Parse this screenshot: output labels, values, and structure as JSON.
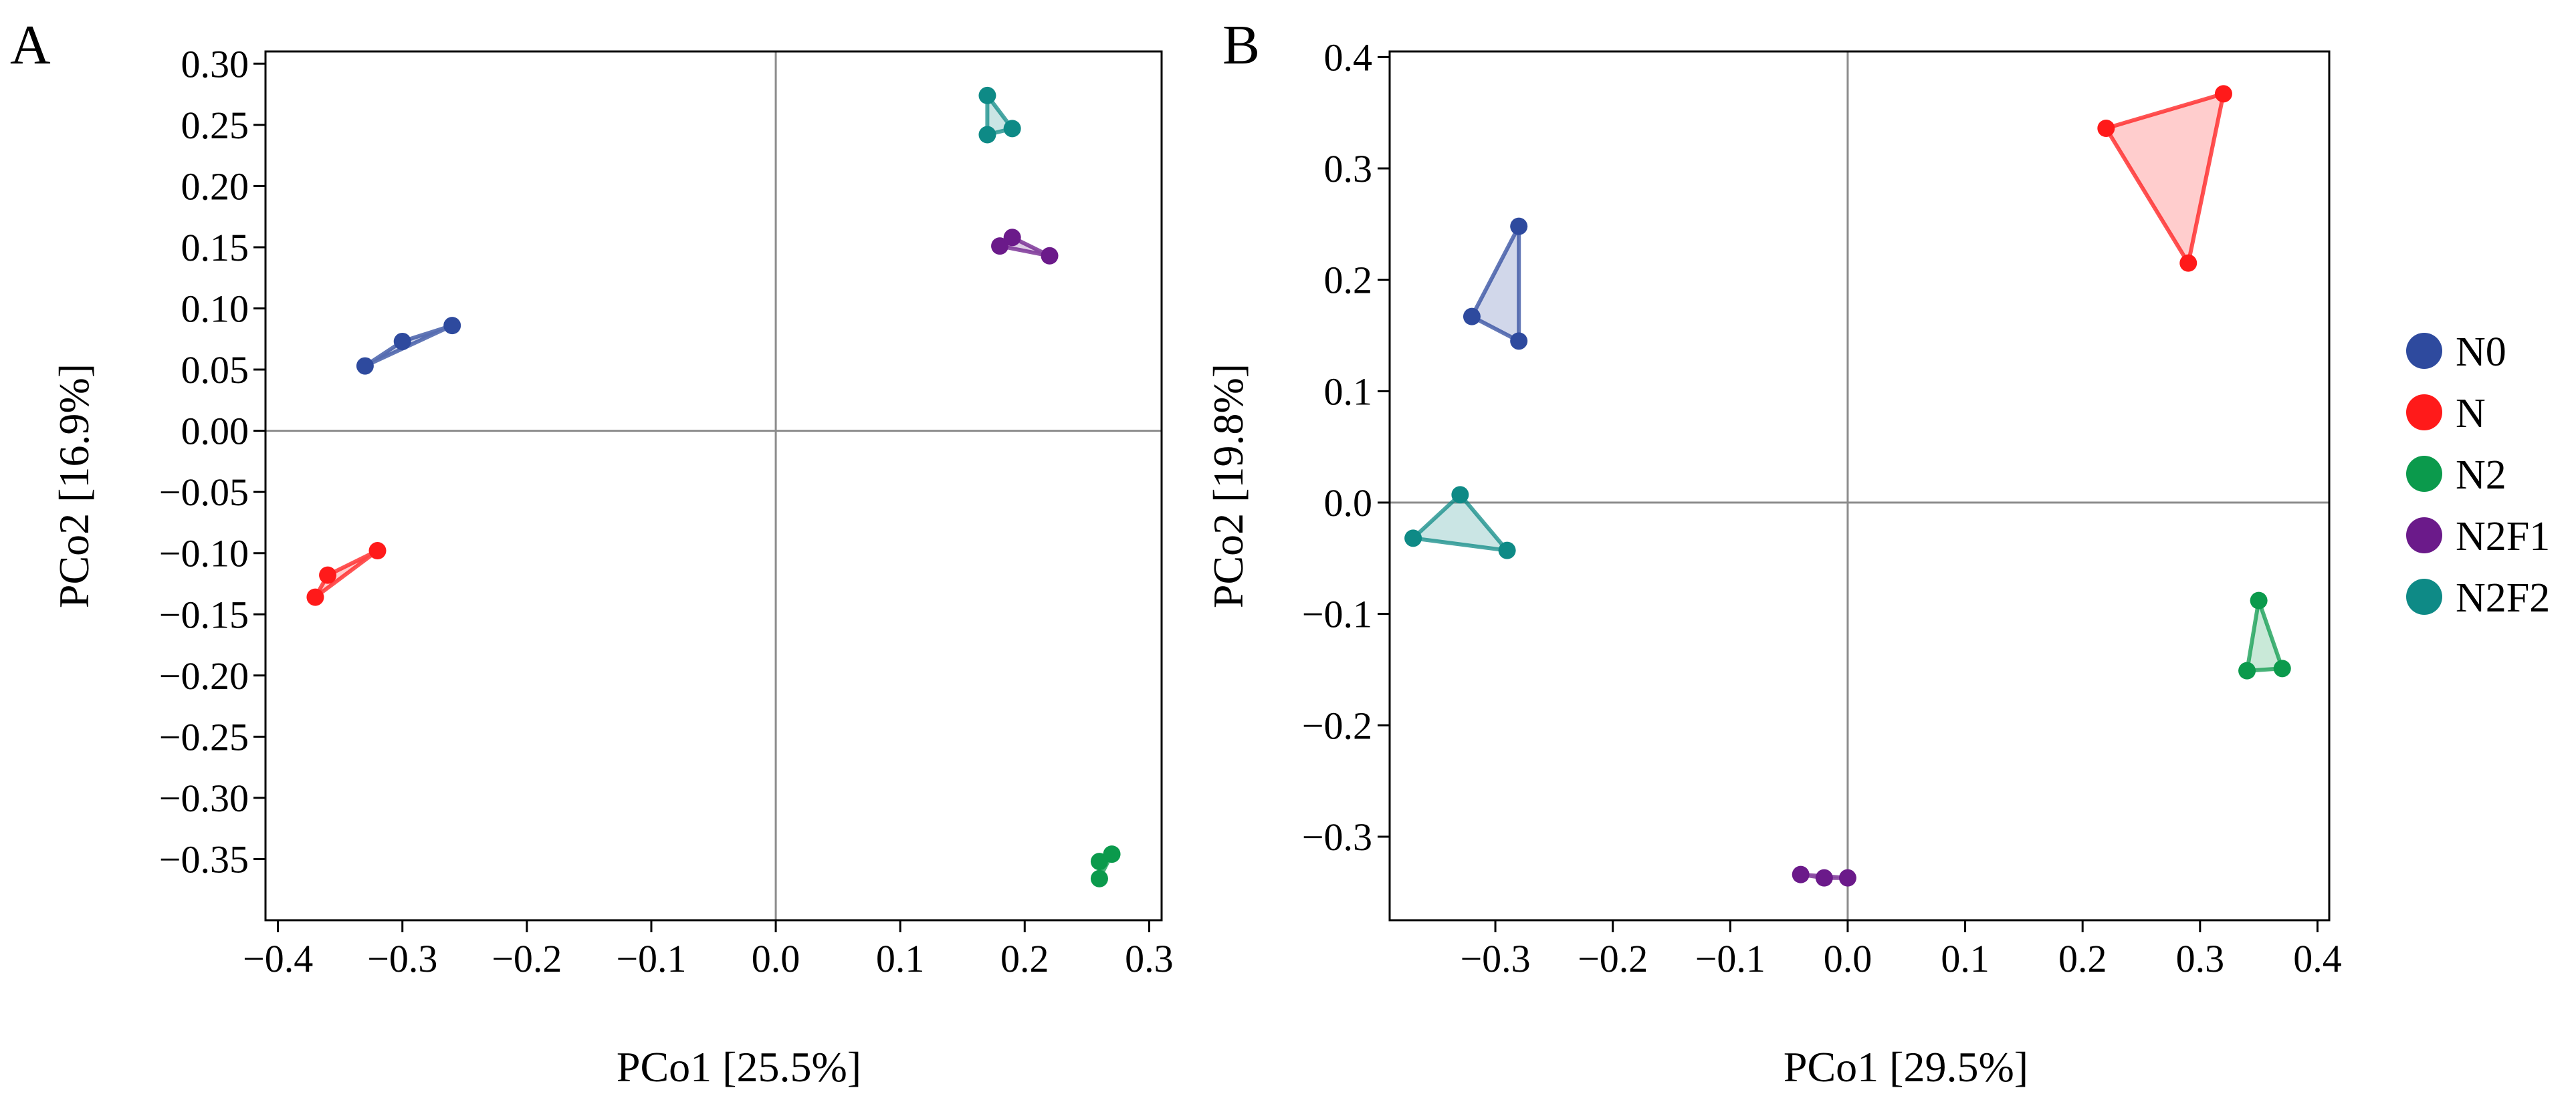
{
  "figure": {
    "legend": [
      {
        "label": "N0",
        "color": "#2e4a9e"
      },
      {
        "label": "N",
        "color": "#ff1a1a"
      },
      {
        "label": "N2",
        "color": "#0b9a4c"
      },
      {
        "label": "N2F1",
        "color": "#6b1a8a"
      },
      {
        "label": "N2F2",
        "color": "#0e8a86"
      }
    ]
  },
  "chart_data": [
    {
      "type": "scatter",
      "panel": "A",
      "xlabel": "PCo1 [25.5%]",
      "ylabel": "PCo2 [16.9%]",
      "xlim": [
        -0.41,
        0.31
      ],
      "ylim": [
        -0.4,
        0.31
      ],
      "xticks": [
        -0.4,
        -0.3,
        -0.2,
        -0.1,
        0.0,
        0.1,
        0.2,
        0.3
      ],
      "xtick_labels": [
        "−0.4",
        "−0.3",
        "−0.2",
        "−0.1",
        "0.0",
        "0.1",
        "0.2",
        "0.3"
      ],
      "yticks": [
        0.3,
        0.25,
        0.2,
        0.15,
        0.1,
        0.05,
        0.0,
        -0.05,
        -0.1,
        -0.15,
        -0.2,
        -0.25,
        -0.3,
        -0.35
      ],
      "ytick_labels": [
        "0.30",
        "0.25",
        "0.20",
        "0.15",
        "0.10",
        "0.05",
        "0.00",
        "−0.05",
        "−0.10",
        "−0.15",
        "−0.20",
        "−0.25",
        "−0.30",
        "−0.35"
      ],
      "grid": false,
      "zero_lines": true,
      "series": [
        {
          "name": "N0",
          "color": "#2e4a9e",
          "points": [
            [
              -0.33,
              0.053
            ],
            [
              -0.3,
              0.073
            ],
            [
              -0.26,
              0.086
            ]
          ]
        },
        {
          "name": "N",
          "color": "#ff1a1a",
          "points": [
            [
              -0.37,
              -0.136
            ],
            [
              -0.36,
              -0.118
            ],
            [
              -0.32,
              -0.098
            ]
          ]
        },
        {
          "name": "N2",
          "color": "#0b9a4c",
          "points": [
            [
              0.26,
              -0.352
            ],
            [
              0.27,
              -0.346
            ],
            [
              0.26,
              -0.366
            ]
          ]
        },
        {
          "name": "N2F1",
          "color": "#6b1a8a",
          "points": [
            [
              0.18,
              0.151
            ],
            [
              0.19,
              0.158
            ],
            [
              0.22,
              0.143
            ]
          ]
        },
        {
          "name": "N2F2",
          "color": "#0e8a86",
          "points": [
            [
              0.17,
              0.274
            ],
            [
              0.19,
              0.247
            ],
            [
              0.17,
              0.242
            ]
          ]
        }
      ]
    },
    {
      "type": "scatter",
      "panel": "B",
      "xlabel": "PCo1 [29.5%]",
      "ylabel": "PCo2 [19.8%]",
      "xlim": [
        -0.39,
        0.41
      ],
      "ylim": [
        -0.375,
        0.405
      ],
      "xticks": [
        -0.3,
        -0.2,
        -0.1,
        0.0,
        0.1,
        0.2,
        0.3,
        0.4
      ],
      "xtick_labels": [
        "−0.3",
        "−0.2",
        "−0.1",
        "0.0",
        "0.1",
        "0.2",
        "0.3",
        "0.4"
      ],
      "yticks": [
        0.4,
        0.3,
        0.2,
        0.1,
        0.0,
        -0.1,
        -0.2,
        -0.3
      ],
      "ytick_labels": [
        "0.4",
        "0.3",
        "0.2",
        "0.1",
        "0.0",
        "−0.1",
        "−0.2",
        "−0.3"
      ],
      "grid": false,
      "zero_lines": true,
      "series": [
        {
          "name": "N0",
          "color": "#2e4a9e",
          "points": [
            [
              -0.28,
              0.248
            ],
            [
              -0.32,
              0.167
            ],
            [
              -0.28,
              0.145
            ]
          ]
        },
        {
          "name": "N",
          "color": "#ff1a1a",
          "points": [
            [
              0.22,
              0.336
            ],
            [
              0.32,
              0.367
            ],
            [
              0.29,
              0.215
            ]
          ]
        },
        {
          "name": "N2",
          "color": "#0b9a4c",
          "points": [
            [
              0.35,
              -0.088
            ],
            [
              0.37,
              -0.149
            ],
            [
              0.34,
              -0.151
            ]
          ]
        },
        {
          "name": "N2F1",
          "color": "#6b1a8a",
          "points": [
            [
              -0.04,
              -0.334
            ],
            [
              -0.02,
              -0.337
            ],
            [
              0.0,
              -0.337
            ]
          ]
        },
        {
          "name": "N2F2",
          "color": "#0e8a86",
          "points": [
            [
              -0.33,
              0.007
            ],
            [
              -0.29,
              -0.043
            ],
            [
              -0.37,
              -0.032
            ]
          ]
        }
      ]
    }
  ]
}
